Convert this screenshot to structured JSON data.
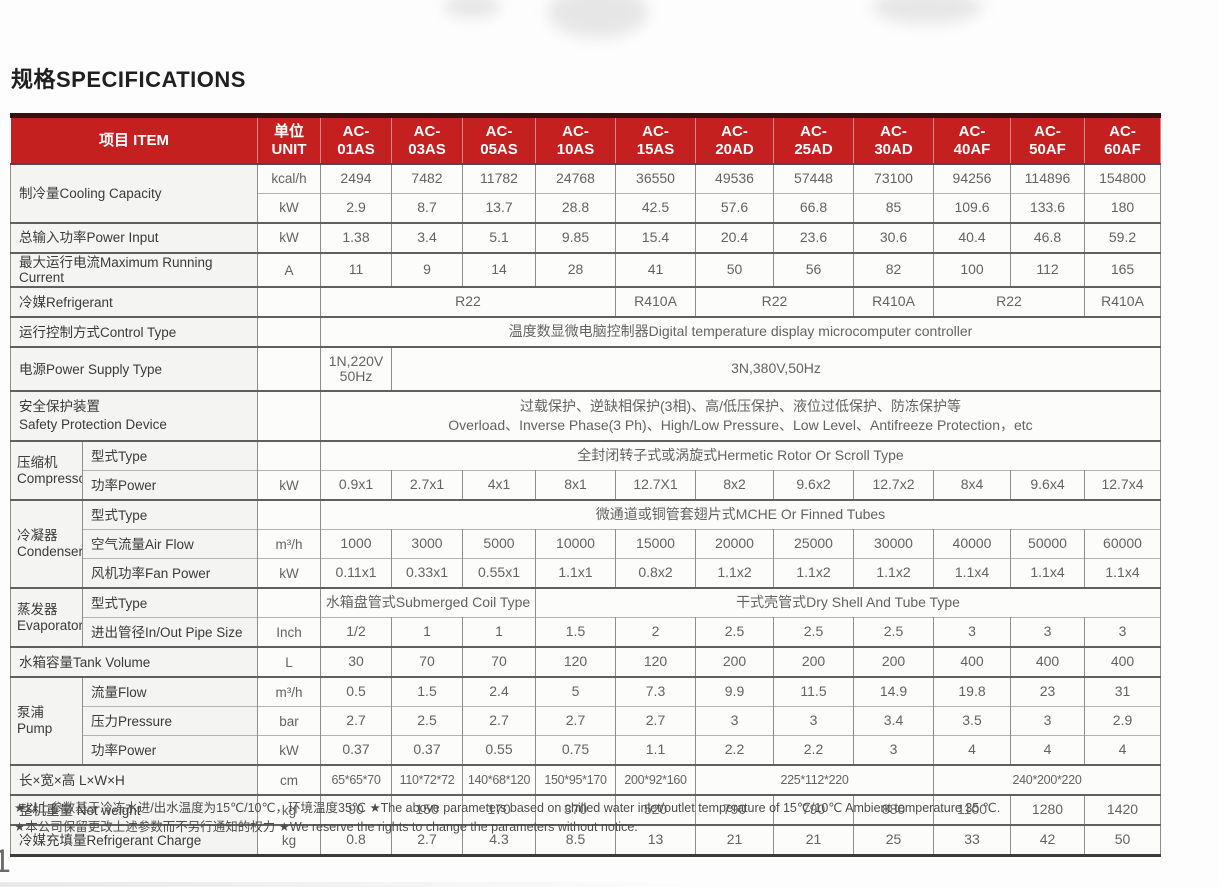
{
  "page": {
    "title": "规格SPECIFICATIONS",
    "page_number": "1",
    "footnotes": [
      "★以上参数基于冷冻水进/出水温度为15℃/10℃，环境温度35℃  ★The above parameters based on chilled water inlet/outlet temperature of 15℃/10℃ Ambient temperature 35 ℃.",
      "★本公司保留更改上述参数而不另行通知的权力  ★We reserve the rights to change the parameters without notice."
    ]
  },
  "colors": {
    "header_red": "#c3201f",
    "header_top": "#36120f",
    "label_bg": "#f4f4f2",
    "cell_bg": "#fcfcfb",
    "text_dark": "#3a3a3a",
    "text_val": "#636363"
  },
  "table": {
    "header": {
      "cells": [
        {
          "t": "项目 ITEM",
          "cs": 2,
          "n": "item-column-header"
        },
        {
          "t": "单位\nUNIT",
          "n": "unit-column-header"
        },
        {
          "t": "AC-\n01AS"
        },
        {
          "t": "AC-\n03AS"
        },
        {
          "t": "AC-\n05AS"
        },
        {
          "t": "AC-\n10AS"
        },
        {
          "t": "AC-\n15AS"
        },
        {
          "t": "AC-\n20AD"
        },
        {
          "t": "AC-\n25AD"
        },
        {
          "t": "AC-\n30AD"
        },
        {
          "t": "AC-\n40AF"
        },
        {
          "t": "AC-\n50AF"
        },
        {
          "t": "AC-\n60AF"
        }
      ]
    },
    "rows": [
      {
        "n": "cooling-capacity-kcal",
        "cells": [
          {
            "t": "制冷量Cooling Capacity",
            "cs": 2,
            "rs": 2,
            "cls": "label"
          },
          {
            "t": "kcal/h",
            "cls": "unit"
          },
          {
            "t": "2494"
          },
          {
            "t": "7482"
          },
          {
            "t": "11782"
          },
          {
            "t": "24768"
          },
          {
            "t": "36550"
          },
          {
            "t": "49536"
          },
          {
            "t": "57448"
          },
          {
            "t": "73100"
          },
          {
            "t": "94256"
          },
          {
            "t": "114896"
          },
          {
            "t": "154800"
          }
        ]
      },
      {
        "n": "cooling-capacity-kw",
        "cells": [
          {
            "t": "kW",
            "cls": "unit"
          },
          {
            "t": "2.9"
          },
          {
            "t": "8.7"
          },
          {
            "t": "13.7"
          },
          {
            "t": "28.8"
          },
          {
            "t": "42.5"
          },
          {
            "t": "57.6"
          },
          {
            "t": "66.8"
          },
          {
            "t": "85"
          },
          {
            "t": "109.6"
          },
          {
            "t": "133.6"
          },
          {
            "t": "180"
          }
        ]
      },
      {
        "n": "power-input",
        "cls": "sec",
        "cells": [
          {
            "t": "总输入功率Power Input",
            "cs": 2,
            "cls": "label"
          },
          {
            "t": "kW",
            "cls": "unit"
          },
          {
            "t": "1.38"
          },
          {
            "t": "3.4"
          },
          {
            "t": "5.1"
          },
          {
            "t": "9.85"
          },
          {
            "t": "15.4"
          },
          {
            "t": "20.4"
          },
          {
            "t": "23.6"
          },
          {
            "t": "30.6"
          },
          {
            "t": "40.4"
          },
          {
            "t": "46.8"
          },
          {
            "t": "59.2"
          }
        ]
      },
      {
        "n": "max-running-current",
        "cls": "sec",
        "cells": [
          {
            "t": "最大运行电流Maximum Running Current",
            "cs": 2,
            "cls": "label"
          },
          {
            "t": "A",
            "cls": "unit"
          },
          {
            "t": "11"
          },
          {
            "t": "9"
          },
          {
            "t": "14"
          },
          {
            "t": "28"
          },
          {
            "t": "41"
          },
          {
            "t": "50"
          },
          {
            "t": "56"
          },
          {
            "t": "82"
          },
          {
            "t": "100"
          },
          {
            "t": "112"
          },
          {
            "t": "165"
          }
        ]
      },
      {
        "n": "refrigerant",
        "cls": "sec",
        "cells": [
          {
            "t": "冷媒Refrigerant",
            "cs": 2,
            "cls": "label"
          },
          {
            "t": "",
            "cls": "unit"
          },
          {
            "t": "R22",
            "cs": 4
          },
          {
            "t": "R410A"
          },
          {
            "t": "R22",
            "cs": 2
          },
          {
            "t": "R410A"
          },
          {
            "t": "R22",
            "cs": 2
          },
          {
            "t": "R410A"
          }
        ]
      },
      {
        "n": "control-type",
        "cls": "sec",
        "cells": [
          {
            "t": "运行控制方式Control Type",
            "cs": 2,
            "cls": "label"
          },
          {
            "t": "",
            "cls": "unit"
          },
          {
            "t": "温度数显微电脑控制器Digital temperature display microcomputer controller",
            "cs": 11
          }
        ]
      },
      {
        "n": "power-supply",
        "cls": "sec h40",
        "cells": [
          {
            "t": "电源Power Supply Type",
            "cs": 2,
            "cls": "label"
          },
          {
            "t": "",
            "cls": "unit"
          },
          {
            "t": "1N,220V\n50Hz"
          },
          {
            "t": "3N,380V,50Hz",
            "cs": 10
          }
        ]
      },
      {
        "n": "safety-protection",
        "cls": "sec h46",
        "cells": [
          {
            "t": "安全保护装置\nSafety Protection Device",
            "cs": 2,
            "cls": "label"
          },
          {
            "t": "",
            "cls": "unit"
          },
          {
            "t": "过载保护、逆缺相保护(3相)、高/低压保护、液位过低保护、防冻保护等\nOverload、Inverse Phase(3 Ph)、High/Low Pressure、Low Level、Antifreeze Protection，etc",
            "cs": 11
          }
        ]
      },
      {
        "n": "compressor-type",
        "cls": "sec",
        "cells": [
          {
            "t": "压缩机\nCompressor",
            "rs": 2,
            "cls": "group"
          },
          {
            "t": "型式Type",
            "cls": "sub"
          },
          {
            "t": "",
            "cls": "unit"
          },
          {
            "t": "全封闭转子式或涡旋式Hermetic Rotor Or Scroll Type",
            "cs": 11
          }
        ]
      },
      {
        "n": "compressor-power",
        "cells": [
          {
            "t": "功率Power",
            "cls": "sub"
          },
          {
            "t": "kW",
            "cls": "unit"
          },
          {
            "t": "0.9x1"
          },
          {
            "t": "2.7x1"
          },
          {
            "t": "4x1"
          },
          {
            "t": "8x1"
          },
          {
            "t": "12.7X1"
          },
          {
            "t": "8x2"
          },
          {
            "t": "9.6x2"
          },
          {
            "t": "12.7x2"
          },
          {
            "t": "8x4"
          },
          {
            "t": "9.6x4"
          },
          {
            "t": "12.7x4"
          }
        ]
      },
      {
        "n": "condenser-type",
        "cls": "sec",
        "cells": [
          {
            "t": "冷凝器\nCondenser",
            "rs": 3,
            "cls": "group"
          },
          {
            "t": "型式Type",
            "cls": "sub"
          },
          {
            "t": "",
            "cls": "unit"
          },
          {
            "t": "微通道或铜管套翅片式MCHE Or Finned Tubes",
            "cs": 11
          }
        ]
      },
      {
        "n": "condenser-air-flow",
        "cells": [
          {
            "t": "空气流量Air Flow",
            "cls": "sub"
          },
          {
            "t": "m³/h",
            "cls": "unit"
          },
          {
            "t": "1000"
          },
          {
            "t": "3000"
          },
          {
            "t": "5000"
          },
          {
            "t": "10000"
          },
          {
            "t": "15000"
          },
          {
            "t": "20000"
          },
          {
            "t": "25000"
          },
          {
            "t": "30000"
          },
          {
            "t": "40000"
          },
          {
            "t": "50000"
          },
          {
            "t": "60000"
          }
        ]
      },
      {
        "n": "condenser-fan-power",
        "cells": [
          {
            "t": "风机功率Fan Power",
            "cls": "sub"
          },
          {
            "t": "kW",
            "cls": "unit"
          },
          {
            "t": "0.11x1"
          },
          {
            "t": "0.33x1"
          },
          {
            "t": "0.55x1"
          },
          {
            "t": "1.1x1"
          },
          {
            "t": "0.8x2"
          },
          {
            "t": "1.1x2"
          },
          {
            "t": "1.1x2"
          },
          {
            "t": "1.1x2"
          },
          {
            "t": "1.1x4"
          },
          {
            "t": "1.1x4"
          },
          {
            "t": "1.1x4"
          }
        ]
      },
      {
        "n": "evaporator-type",
        "cls": "sec",
        "cells": [
          {
            "t": "蒸发器\nEvaporator",
            "rs": 2,
            "cls": "group"
          },
          {
            "t": "型式Type",
            "cls": "sub"
          },
          {
            "t": "",
            "cls": "unit"
          },
          {
            "t": "水箱盘管式Submerged Coil Type",
            "cs": 3
          },
          {
            "t": "干式壳管式Dry Shell And Tube Type",
            "cs": 8
          }
        ]
      },
      {
        "n": "evaporator-pipe-size",
        "cells": [
          {
            "t": "进出管径In/Out Pipe Size",
            "cls": "sub"
          },
          {
            "t": "Inch",
            "cls": "unit"
          },
          {
            "t": "1/2"
          },
          {
            "t": "1"
          },
          {
            "t": "1"
          },
          {
            "t": "1.5"
          },
          {
            "t": "2"
          },
          {
            "t": "2.5"
          },
          {
            "t": "2.5"
          },
          {
            "t": "2.5"
          },
          {
            "t": "3"
          },
          {
            "t": "3"
          },
          {
            "t": "3"
          }
        ]
      },
      {
        "n": "tank-volume",
        "cls": "sec",
        "cells": [
          {
            "t": "水箱容量Tank Volume",
            "cs": 2,
            "cls": "label"
          },
          {
            "t": "L",
            "cls": "unit"
          },
          {
            "t": "30"
          },
          {
            "t": "70"
          },
          {
            "t": "70"
          },
          {
            "t": "120"
          },
          {
            "t": "120"
          },
          {
            "t": "200"
          },
          {
            "t": "200"
          },
          {
            "t": "200"
          },
          {
            "t": "400"
          },
          {
            "t": "400"
          },
          {
            "t": "400"
          }
        ]
      },
      {
        "n": "pump-flow",
        "cls": "sec",
        "cells": [
          {
            "t": "泵浦\nPump",
            "rs": 3,
            "cls": "group"
          },
          {
            "t": "流量Flow",
            "cls": "sub"
          },
          {
            "t": "m³/h",
            "cls": "unit"
          },
          {
            "t": "0.5"
          },
          {
            "t": "1.5"
          },
          {
            "t": "2.4"
          },
          {
            "t": "5"
          },
          {
            "t": "7.3"
          },
          {
            "t": "9.9"
          },
          {
            "t": "11.5"
          },
          {
            "t": "14.9"
          },
          {
            "t": "19.8"
          },
          {
            "t": "23"
          },
          {
            "t": "31"
          }
        ]
      },
      {
        "n": "pump-pressure",
        "cells": [
          {
            "t": "压力Pressure",
            "cls": "sub"
          },
          {
            "t": "bar",
            "cls": "unit"
          },
          {
            "t": "2.7"
          },
          {
            "t": "2.5"
          },
          {
            "t": "2.7"
          },
          {
            "t": "2.7"
          },
          {
            "t": "2.7"
          },
          {
            "t": "3"
          },
          {
            "t": "3"
          },
          {
            "t": "3.4"
          },
          {
            "t": "3.5"
          },
          {
            "t": "3"
          },
          {
            "t": "2.9"
          }
        ]
      },
      {
        "n": "pump-power",
        "cells": [
          {
            "t": "功率Power",
            "cls": "sub"
          },
          {
            "t": "kW",
            "cls": "unit"
          },
          {
            "t": "0.37"
          },
          {
            "t": "0.37"
          },
          {
            "t": "0.55"
          },
          {
            "t": "0.75"
          },
          {
            "t": "1.1"
          },
          {
            "t": "2.2"
          },
          {
            "t": "2.2"
          },
          {
            "t": "3"
          },
          {
            "t": "4"
          },
          {
            "t": "4"
          },
          {
            "t": "4"
          }
        ]
      },
      {
        "n": "dimensions",
        "cls": "sec dims",
        "cells": [
          {
            "t": "长×宽×高 L×W×H",
            "cs": 2,
            "cls": "label"
          },
          {
            "t": "cm",
            "cls": "unit"
          },
          {
            "t": "65*65*70"
          },
          {
            "t": "110*72*72"
          },
          {
            "t": "140*68*120"
          },
          {
            "t": "150*95*170"
          },
          {
            "t": "200*92*160"
          },
          {
            "t": "225*112*220",
            "cs": 3
          },
          {
            "t": "240*200*220",
            "cs": 3
          }
        ]
      },
      {
        "n": "net-weight",
        "cls": "sec",
        "cells": [
          {
            "t": "整机重量 Net weight",
            "cs": 2,
            "cls": "label"
          },
          {
            "t": "kg",
            "cls": "unit"
          },
          {
            "t": "90"
          },
          {
            "t": "150"
          },
          {
            "t": "170"
          },
          {
            "t": "370"
          },
          {
            "t": "520"
          },
          {
            "t": "790"
          },
          {
            "t": "790"
          },
          {
            "t": "880"
          },
          {
            "t": "1100"
          },
          {
            "t": "1280"
          },
          {
            "t": "1420"
          }
        ]
      },
      {
        "n": "refrigerant-charge",
        "cls": "sec",
        "cells": [
          {
            "t": "冷媒充填量Refrigerant Charge",
            "cs": 2,
            "cls": "label"
          },
          {
            "t": "kg",
            "cls": "unit"
          },
          {
            "t": "0.8"
          },
          {
            "t": "2.7"
          },
          {
            "t": "4.3"
          },
          {
            "t": "8.5"
          },
          {
            "t": "13"
          },
          {
            "t": "21"
          },
          {
            "t": "21"
          },
          {
            "t": "25"
          },
          {
            "t": "33"
          },
          {
            "t": "42"
          },
          {
            "t": "50"
          }
        ]
      }
    ]
  }
}
